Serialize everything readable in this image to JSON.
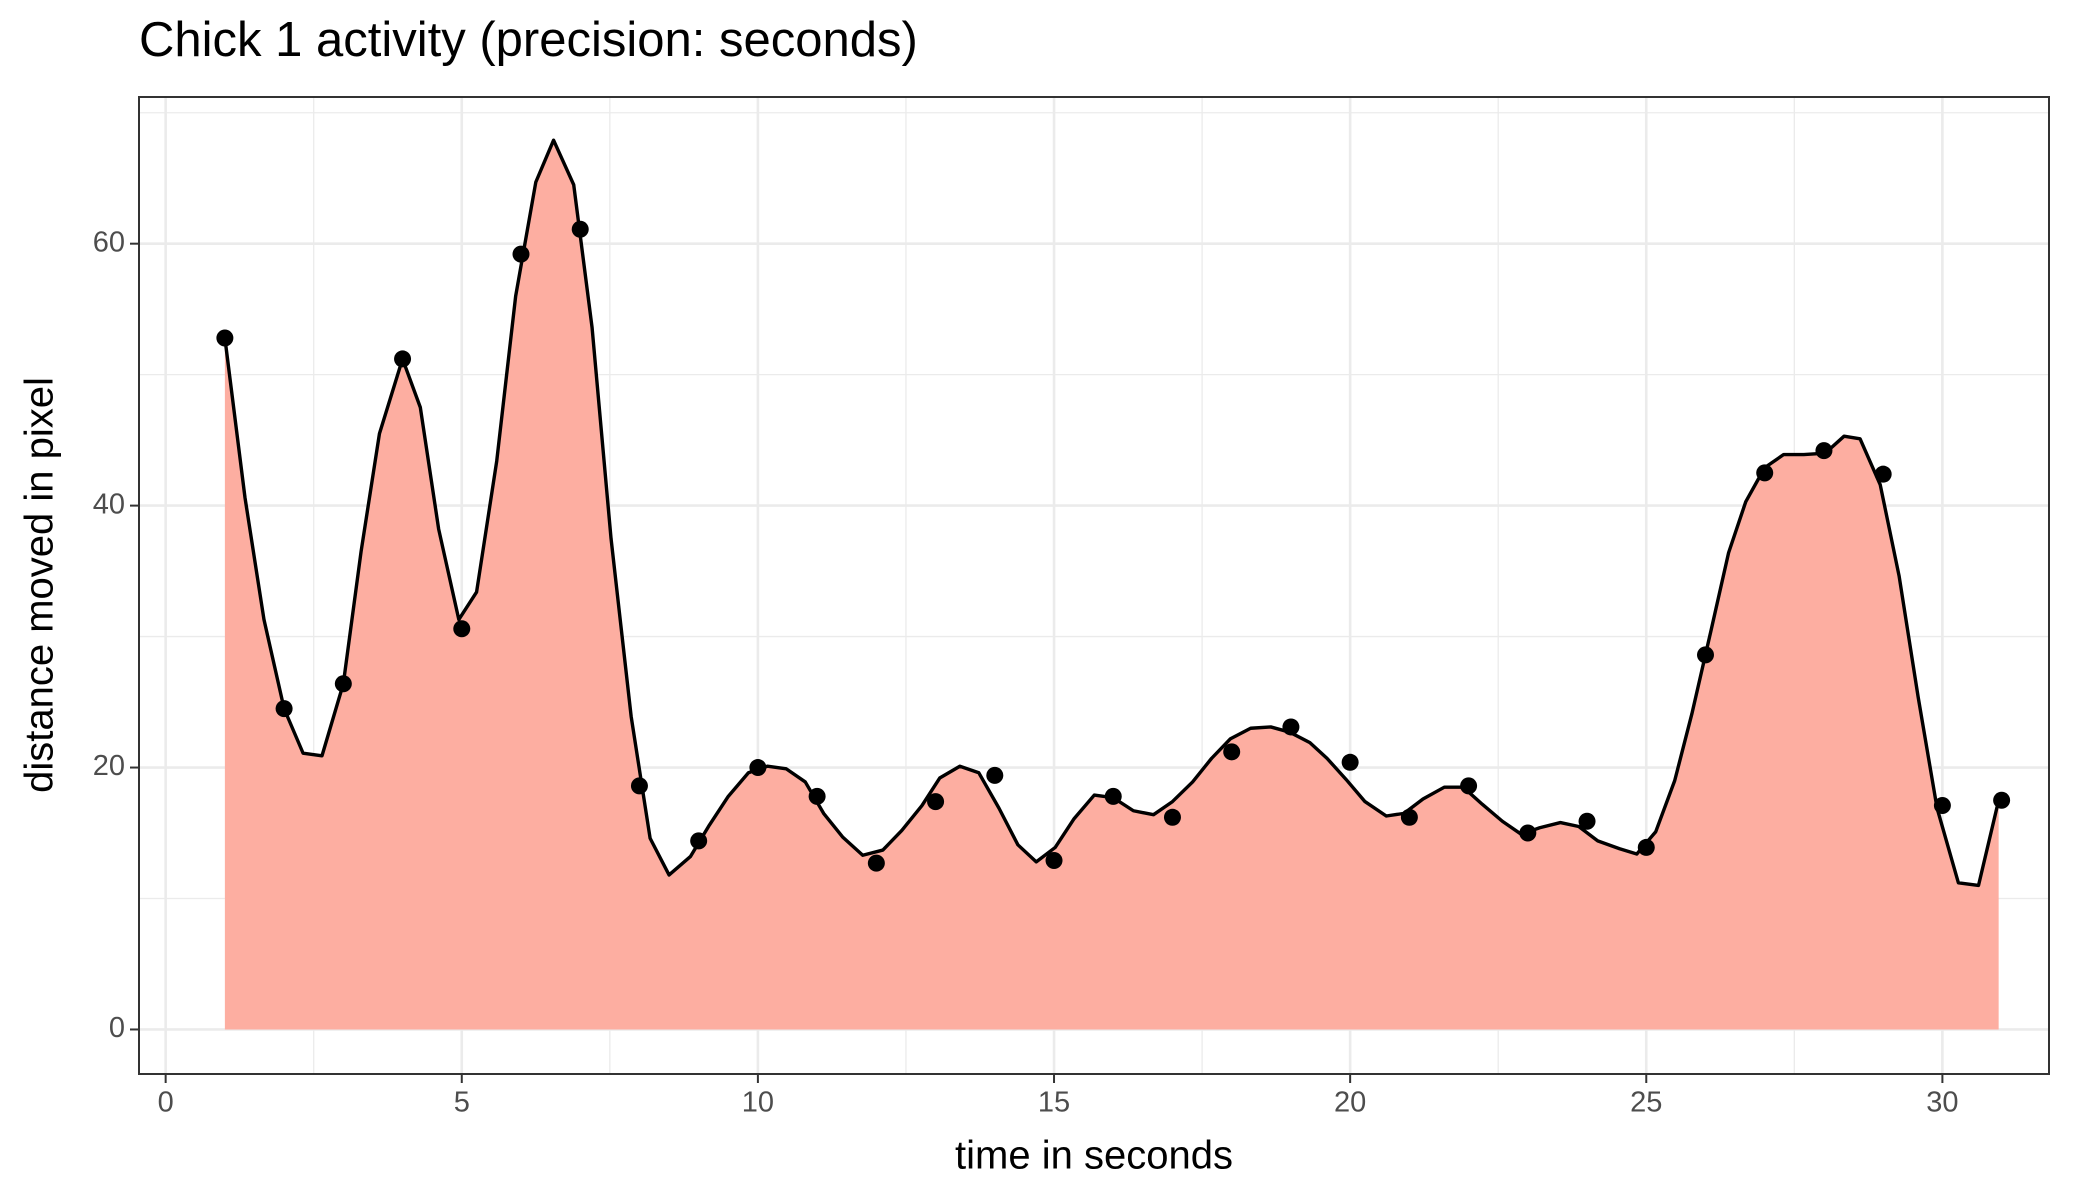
{
  "chart_data": {
    "type": "area",
    "title": "Chick 1 activity (precision: seconds)",
    "x_label": "time in seconds",
    "y_label": "distance moved in pixel",
    "xlim": [
      -0.45,
      31.8
    ],
    "xticks": [
      0,
      5,
      10,
      15,
      20,
      25,
      30
    ],
    "ylim": [
      -3.4,
      71.2
    ],
    "yticks": [
      0,
      20,
      40,
      60
    ],
    "grid": true,
    "minor_grid": true,
    "area": {
      "fill": "#fdaea1",
      "line_color": "#000000",
      "x": [
        1.0,
        1.34,
        1.66,
        2.0,
        2.32,
        2.64,
        3.0,
        3.3,
        3.61,
        4.0,
        4.3,
        4.61,
        4.95,
        5.25,
        5.59,
        5.91,
        6.25,
        6.55,
        6.89,
        7.2,
        7.52,
        7.86,
        8.18,
        8.5,
        8.86,
        9.18,
        9.5,
        9.84,
        10.16,
        10.48,
        10.8,
        11.11,
        11.43,
        11.77,
        12.11,
        12.43,
        12.77,
        13.07,
        13.41,
        13.73,
        14.07,
        14.39,
        14.7,
        15.02,
        15.34,
        15.68,
        16.0,
        16.34,
        16.68,
        17.0,
        17.34,
        17.66,
        17.98,
        18.32,
        18.66,
        18.98,
        19.32,
        19.61,
        19.93,
        20.25,
        20.61,
        20.91,
        21.23,
        21.59,
        21.91,
        22.23,
        22.57,
        22.89,
        23.2,
        23.55,
        23.86,
        24.18,
        24.55,
        24.84,
        25.16,
        25.48,
        25.77,
        26.09,
        26.39,
        26.68,
        27.0,
        27.32,
        27.66,
        28.02,
        28.34,
        28.61,
        28.95,
        29.27,
        29.59,
        29.91,
        30.27,
        30.61,
        30.95
      ],
      "values": [
        52.8,
        40.6,
        31.3,
        24.5,
        21.1,
        20.9,
        26.4,
        36.5,
        45.5,
        51.2,
        47.5,
        38.2,
        31.3,
        33.4,
        43.4,
        56.0,
        64.7,
        67.9,
        64.5,
        53.6,
        37.5,
        23.9,
        14.6,
        11.8,
        13.2,
        15.6,
        17.8,
        19.6,
        20.1,
        19.9,
        18.9,
        16.5,
        14.7,
        13.3,
        13.7,
        15.2,
        17.1,
        19.2,
        20.1,
        19.6,
        16.9,
        14.1,
        12.8,
        13.9,
        16.1,
        17.9,
        17.7,
        16.7,
        16.4,
        17.4,
        18.9,
        20.7,
        22.2,
        23.0,
        23.1,
        22.7,
        21.9,
        20.7,
        19.1,
        17.4,
        16.3,
        16.5,
        17.6,
        18.5,
        18.5,
        17.2,
        15.9,
        14.9,
        15.4,
        15.8,
        15.5,
        14.4,
        13.8,
        13.4,
        15.1,
        19.0,
        24.1,
        30.4,
        36.4,
        40.3,
        42.9,
        43.9,
        43.9,
        44.0,
        45.3,
        45.1,
        41.6,
        34.6,
        25.4,
        16.9,
        11.2,
        11.0,
        17.5
      ]
    },
    "points": {
      "color": "#000000",
      "x": [
        1,
        2,
        3,
        4,
        5,
        6,
        7,
        8,
        9,
        10,
        11,
        12,
        13,
        14,
        15,
        16,
        17,
        18,
        19,
        20,
        21,
        22,
        23,
        24,
        25,
        26,
        27,
        28,
        29,
        30,
        31
      ],
      "values": [
        52.8,
        24.5,
        26.4,
        51.2,
        30.6,
        59.2,
        61.1,
        18.6,
        14.4,
        20.0,
        17.8,
        12.7,
        17.4,
        19.4,
        12.9,
        17.8,
        16.2,
        21.2,
        23.1,
        20.4,
        16.2,
        18.6,
        15.0,
        15.9,
        13.9,
        28.6,
        42.5,
        44.2,
        42.4,
        17.1,
        17.5
      ]
    }
  }
}
